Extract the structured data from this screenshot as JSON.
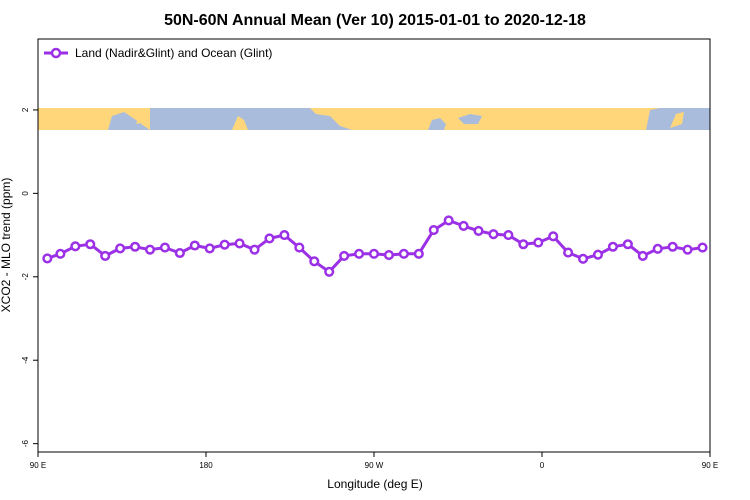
{
  "colors": {
    "series": "#9b30e6",
    "land": "#ffd67a",
    "ocean": "#a9bcdc",
    "axis": "#000000",
    "background": "#ffffff"
  },
  "chart_data": {
    "type": "line",
    "title": "50N-60N Annual Mean (Ver 10)   2015-01-01 to 2020-12-18",
    "xlabel": "Longitude (deg E)",
    "ylabel": "XCO2 - MLO trend (ppm)",
    "xlim": [
      90,
      450
    ],
    "ylim": [
      -6.2,
      3.7
    ],
    "x_tick_labels": [
      "90 E",
      "180",
      "90 W",
      "0",
      "90 E",
      "180"
    ],
    "y_ticks": [
      2,
      0,
      -2,
      -4,
      -6
    ],
    "legend": {
      "position": "top-left",
      "entries": [
        "Land (Nadir&Glint) and Ocean (Glint)"
      ]
    },
    "grid": false,
    "map_strip": {
      "y_range": [
        1.5,
        2.0
      ],
      "description_colors": [
        "land",
        "ocean"
      ]
    },
    "series": [
      {
        "name": "Land (Nadir&Glint) and Ocean (Glint)",
        "x": [
          95,
          102,
          110,
          118,
          126,
          134,
          142,
          150,
          158,
          166,
          174,
          182,
          190,
          198,
          206,
          214,
          222,
          230,
          238,
          246,
          254,
          262,
          270,
          278,
          286,
          294,
          302,
          310,
          318,
          326,
          334,
          342,
          350,
          358,
          366,
          374,
          382,
          390,
          398,
          406,
          414,
          422,
          430,
          438,
          446
        ],
        "y": [
          -1.56,
          -1.45,
          -1.27,
          -1.22,
          -1.5,
          -1.32,
          -1.28,
          -1.35,
          -1.3,
          -1.43,
          -1.25,
          -1.32,
          -1.23,
          -1.2,
          -1.35,
          -1.08,
          -1.0,
          -1.3,
          -1.63,
          -1.88,
          -1.5,
          -1.45,
          -1.45,
          -1.48,
          -1.45,
          -1.45,
          -0.88,
          -0.65,
          -0.78,
          -0.9,
          -0.98,
          -1.0,
          -1.22,
          -1.18,
          -1.03,
          -1.42,
          -1.57,
          -1.47,
          -1.28,
          -1.22,
          -1.5,
          -1.33,
          -1.28,
          -1.35,
          -1.3
        ]
      }
    ]
  }
}
